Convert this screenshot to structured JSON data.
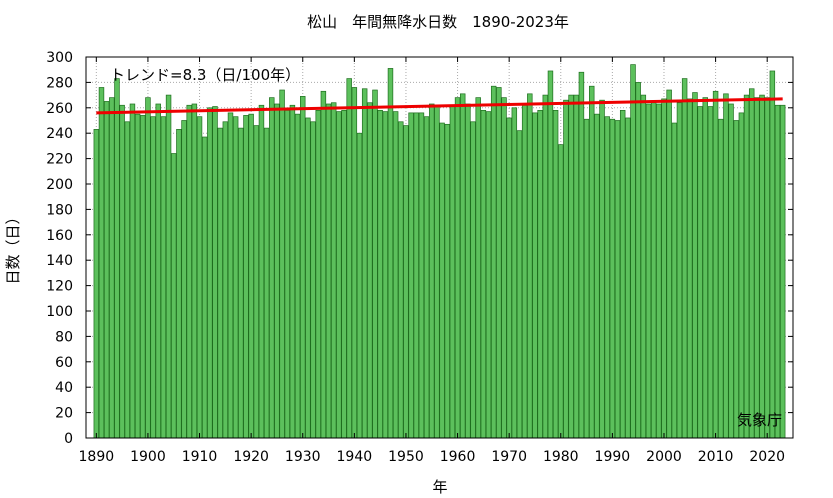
{
  "chart_data": {
    "type": "bar",
    "title": "松山　年間無降水日数　1890-2023年",
    "xlabel": "年",
    "ylabel": "日数（日）",
    "trend_label": "トレンド=8.3（日/100年）",
    "credit": "気象庁",
    "x_start": 1890,
    "xlim": [
      1888,
      2025
    ],
    "ylim": [
      0,
      300
    ],
    "y_ticks": [
      0,
      20,
      40,
      60,
      80,
      100,
      120,
      140,
      160,
      180,
      200,
      220,
      240,
      260,
      280,
      300
    ],
    "x_ticks": [
      1890,
      1900,
      1910,
      1920,
      1930,
      1940,
      1950,
      1960,
      1970,
      1980,
      1990,
      2000,
      2010,
      2020
    ],
    "grid": true,
    "bar_color": "#5cc05c",
    "bar_edge_color": "#1e6e1e",
    "trend_color": "#ee0000",
    "trend": {
      "start_year": 1890,
      "start_value": 256,
      "end_year": 2023,
      "end_value": 267
    },
    "values": [
      243,
      276,
      265,
      268,
      283,
      262,
      249,
      263,
      255,
      254,
      268,
      253,
      263,
      253,
      270,
      224,
      243,
      250,
      262,
      263,
      253,
      237,
      260,
      261,
      244,
      249,
      256,
      253,
      244,
      254,
      255,
      246,
      262,
      244,
      268,
      263,
      274,
      258,
      262,
      255,
      269,
      252,
      249,
      258,
      273,
      263,
      264,
      257,
      258,
      283,
      276,
      240,
      275,
      264,
      274,
      258,
      257,
      291,
      257,
      249,
      246,
      256,
      256,
      256,
      253,
      263,
      261,
      248,
      247,
      262,
      268,
      271,
      263,
      249,
      268,
      258,
      257,
      277,
      276,
      268,
      252,
      260,
      242,
      262,
      271,
      256,
      258,
      270,
      289,
      258,
      231,
      266,
      270,
      270,
      288,
      251,
      277,
      255,
      266,
      253,
      251,
      250,
      258,
      252,
      294,
      280,
      270,
      263,
      264,
      263,
      267,
      274,
      248,
      264,
      283,
      267,
      272,
      261,
      268,
      261,
      273,
      251,
      271,
      263,
      250,
      256,
      270,
      275,
      268,
      270,
      268,
      289,
      262,
      262
    ]
  }
}
